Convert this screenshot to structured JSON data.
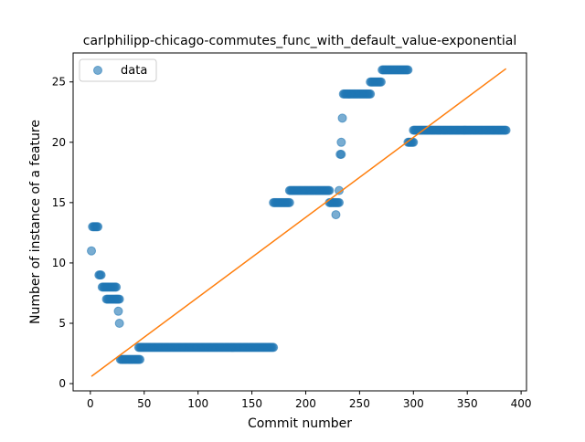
{
  "chart_data": {
    "type": "scatter",
    "title": "carlphilipp-chicago-commutes_func_with_default_value-exponential",
    "xlabel": "Commit number",
    "ylabel": "Number of instance of a feature",
    "xlim": [
      -16,
      405
    ],
    "ylim": [
      -0.6,
      27.4
    ],
    "xticks": [
      0,
      50,
      100,
      150,
      200,
      250,
      300,
      350,
      400
    ],
    "yticks": [
      0,
      5,
      10,
      15,
      20,
      25
    ],
    "legend": {
      "position": "top-left",
      "entries": [
        "data"
      ]
    },
    "colors": {
      "data": "#1f77b4",
      "fit": "#ff7f0e"
    },
    "segments": [
      {
        "x_start": 1,
        "x_end": 1,
        "y": 11
      },
      {
        "x_start": 2,
        "x_end": 7,
        "y": 13
      },
      {
        "x_start": 8,
        "x_end": 10,
        "y": 9
      },
      {
        "x_start": 11,
        "x_end": 24,
        "y": 8
      },
      {
        "x_start": 15,
        "x_end": 27,
        "y": 7
      },
      {
        "x_start": 26,
        "x_end": 26,
        "y": 6
      },
      {
        "x_start": 27,
        "x_end": 27,
        "y": 5
      },
      {
        "x_start": 28,
        "x_end": 46,
        "y": 2
      },
      {
        "x_start": 45,
        "x_end": 170,
        "y": 3
      },
      {
        "x_start": 170,
        "x_end": 185,
        "y": 15
      },
      {
        "x_start": 185,
        "x_end": 222,
        "y": 16
      },
      {
        "x_start": 222,
        "x_end": 231,
        "y": 15
      },
      {
        "x_start": 228,
        "x_end": 228,
        "y": 14
      },
      {
        "x_start": 231,
        "x_end": 231,
        "y": 16
      },
      {
        "x_start": 232,
        "x_end": 233,
        "y": 19
      },
      {
        "x_start": 233,
        "x_end": 233,
        "y": 20
      },
      {
        "x_start": 234,
        "x_end": 234,
        "y": 22
      },
      {
        "x_start": 235,
        "x_end": 260,
        "y": 24
      },
      {
        "x_start": 260,
        "x_end": 270,
        "y": 25
      },
      {
        "x_start": 271,
        "x_end": 295,
        "y": 26
      },
      {
        "x_start": 295,
        "x_end": 300,
        "y": 20
      },
      {
        "x_start": 300,
        "x_end": 386,
        "y": 21
      }
    ],
    "fit_line": {
      "x": [
        1,
        386
      ],
      "y": [
        0.6,
        26.1
      ]
    }
  }
}
